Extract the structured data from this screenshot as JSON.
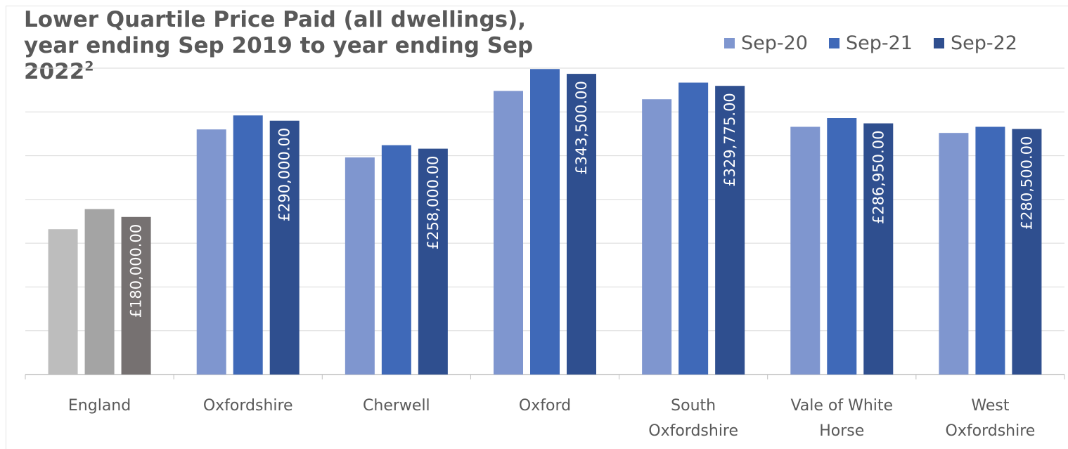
{
  "chart_data": {
    "type": "bar",
    "title": "Lower Quartile Price Paid (all dwellings), year ending Sep 2019 to year ending Sep 2022",
    "title_superscript": "2",
    "xlabel": "",
    "ylabel": "",
    "ylim": [
      0,
      350000
    ],
    "grid": true,
    "legend_position": "top-right",
    "categories": [
      "England",
      "Oxfordshire",
      "Cherwell",
      "Oxford",
      "South Oxfordshire",
      "Vale of White Horse",
      "West Oxfordshire"
    ],
    "series": [
      {
        "name": "Sep-20",
        "values": [
          166000,
          280000,
          248000,
          324000,
          314500,
          283000,
          276000
        ]
      },
      {
        "name": "Sep-21",
        "values": [
          189000,
          296000,
          262000,
          349000,
          333500,
          293000,
          283000
        ]
      },
      {
        "name": "Sep-22",
        "values": [
          180000,
          290000,
          258000,
          343500,
          329775,
          286950,
          280500
        ]
      }
    ],
    "data_labels": {
      "series": "Sep-22",
      "texts": [
        "£180,000.00",
        "£290,000.00",
        "£258,000.00",
        "£343,500.00",
        "£329,775.00",
        "£286,950.00",
        "£280,500.00"
      ]
    },
    "colors": {
      "Sep-20": "#7f96cf",
      "Sep-21": "#3f69b8",
      "Sep-22": "#2f4f8f",
      "England": [
        "#bdbdbd",
        "#a4a4a4",
        "#767171"
      ],
      "gridline": "#d9d9d9",
      "axis": "#bfbfbf",
      "text": "#595959"
    }
  }
}
